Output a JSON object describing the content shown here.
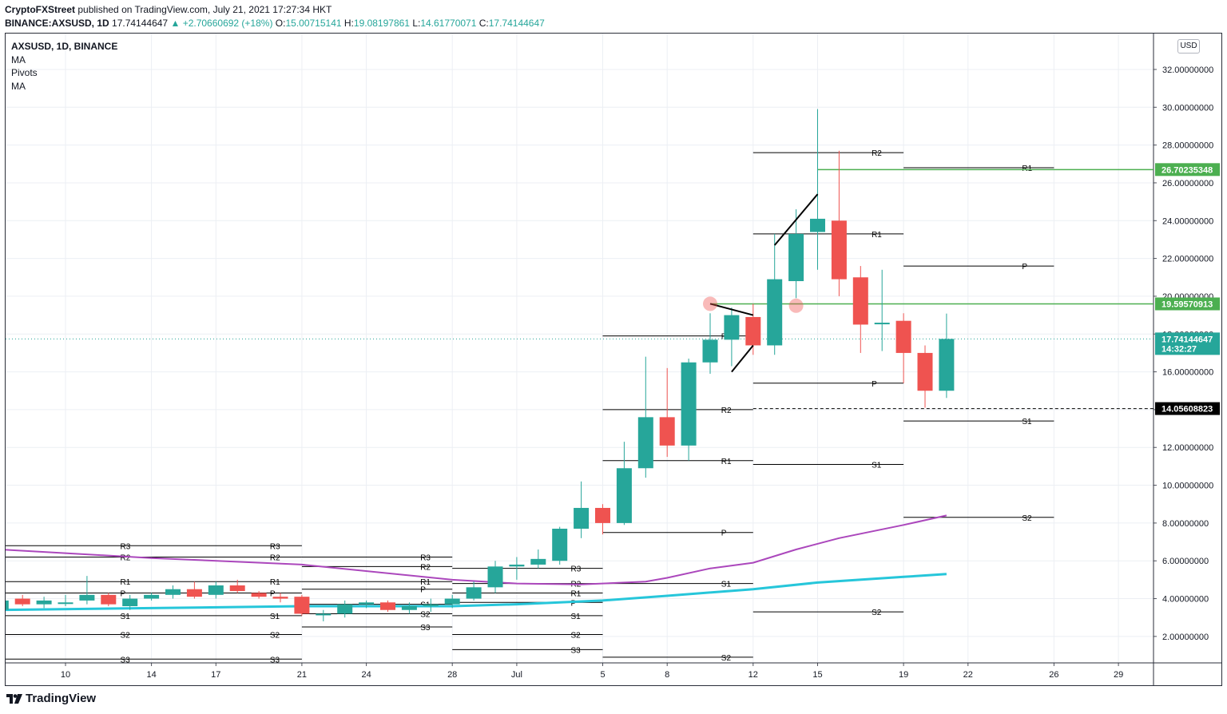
{
  "header": {
    "publisher": "CryptoFXStreet",
    "published_text": "published on TradingView.com, July 21, 2021 17:27:34 HKT",
    "symbol": "BINANCE:AXSUSD, 1D",
    "last": "17.74144647",
    "change": "+2.70660692 (+18%)",
    "o_label": "O:",
    "o": "15.00715141",
    "h_label": "H:",
    "h": "19.08197861",
    "l_label": "L:",
    "l": "14.61770071",
    "c_label": "C:",
    "c": "17.74144647"
  },
  "legend": {
    "title": "AXSUSD, 1D, BINANCE",
    "indicators": [
      "MA",
      "Pivots",
      "MA"
    ]
  },
  "currency": "USD",
  "footer": {
    "brand": "TradingView"
  },
  "colors": {
    "up": "#26a69a",
    "down": "#ef5350",
    "ma_slow": "#ab47bc",
    "ma_fast": "#26c6da",
    "hline": "#4caf50",
    "pivot": "#000000",
    "grid": "#eceff4"
  },
  "chart_data": {
    "type": "candlestick",
    "title": "AXSUSD, 1D, BINANCE",
    "ylim": [
      0.6,
      33.9
    ],
    "y_ticks": [
      "2.00000000",
      "4.00000000",
      "6.00000000",
      "8.00000000",
      "10.00000000",
      "12.00000000",
      "14.00000000",
      "16.00000000",
      "18.00000000",
      "20.00000000",
      "22.00000000",
      "24.00000000",
      "26.00000000",
      "28.00000000",
      "30.00000000",
      "32.00000000"
    ],
    "x_ticks": [
      {
        "label": "10",
        "date": "2021-06-10"
      },
      {
        "label": "14",
        "date": "2021-06-14"
      },
      {
        "label": "17",
        "date": "2021-06-17"
      },
      {
        "label": "21",
        "date": "2021-06-21"
      },
      {
        "label": "24",
        "date": "2021-06-24"
      },
      {
        "label": "28",
        "date": "2021-06-28"
      },
      {
        "label": "Jul",
        "date": "2021-07-01"
      },
      {
        "label": "5",
        "date": "2021-07-05"
      },
      {
        "label": "8",
        "date": "2021-07-08"
      },
      {
        "label": "12",
        "date": "2021-07-12"
      },
      {
        "label": "15",
        "date": "2021-07-15"
      },
      {
        "label": "19",
        "date": "2021-07-19"
      },
      {
        "label": "22",
        "date": "2021-07-22"
      },
      {
        "label": "26",
        "date": "2021-07-26"
      },
      {
        "label": "29",
        "date": "2021-07-29"
      }
    ],
    "candles": [
      {
        "date": "2021-06-07",
        "o": 3.4,
        "h": 3.9,
        "l": 3.2,
        "c": 3.9
      },
      {
        "date": "2021-06-08",
        "o": 4.0,
        "h": 4.2,
        "l": 3.6,
        "c": 3.7
      },
      {
        "date": "2021-06-09",
        "o": 3.7,
        "h": 4.1,
        "l": 3.5,
        "c": 3.9
      },
      {
        "date": "2021-06-10",
        "o": 3.8,
        "h": 4.2,
        "l": 3.6,
        "c": 3.8
      },
      {
        "date": "2021-06-11",
        "o": 3.9,
        "h": 5.2,
        "l": 3.7,
        "c": 4.2
      },
      {
        "date": "2021-06-12",
        "o": 4.2,
        "h": 4.3,
        "l": 3.6,
        "c": 3.7
      },
      {
        "date": "2021-06-13",
        "o": 3.6,
        "h": 4.2,
        "l": 3.4,
        "c": 4.0
      },
      {
        "date": "2021-06-14",
        "o": 4.0,
        "h": 4.3,
        "l": 3.9,
        "c": 4.2
      },
      {
        "date": "2021-06-15",
        "o": 4.2,
        "h": 4.7,
        "l": 4.0,
        "c": 4.5
      },
      {
        "date": "2021-06-16",
        "o": 4.5,
        "h": 4.9,
        "l": 4.0,
        "c": 4.1
      },
      {
        "date": "2021-06-17",
        "o": 4.2,
        "h": 4.9,
        "l": 4.0,
        "c": 4.7
      },
      {
        "date": "2021-06-18",
        "o": 4.7,
        "h": 5.0,
        "l": 4.3,
        "c": 4.4
      },
      {
        "date": "2021-06-19",
        "o": 4.3,
        "h": 4.4,
        "l": 4.0,
        "c": 4.1
      },
      {
        "date": "2021-06-20",
        "o": 4.1,
        "h": 4.3,
        "l": 3.8,
        "c": 4.0
      },
      {
        "date": "2021-06-21",
        "o": 4.1,
        "h": 4.2,
        "l": 3.1,
        "c": 3.2
      },
      {
        "date": "2021-06-22",
        "o": 3.2,
        "h": 3.4,
        "l": 2.8,
        "c": 3.2
      },
      {
        "date": "2021-06-23",
        "o": 3.2,
        "h": 3.9,
        "l": 3.0,
        "c": 3.7
      },
      {
        "date": "2021-06-24",
        "o": 3.7,
        "h": 3.9,
        "l": 3.5,
        "c": 3.8
      },
      {
        "date": "2021-06-25",
        "o": 3.8,
        "h": 3.9,
        "l": 3.3,
        "c": 3.4
      },
      {
        "date": "2021-06-26",
        "o": 3.4,
        "h": 3.8,
        "l": 3.2,
        "c": 3.6
      },
      {
        "date": "2021-06-27",
        "o": 3.6,
        "h": 4.0,
        "l": 3.3,
        "c": 3.7
      },
      {
        "date": "2021-06-28",
        "o": 3.7,
        "h": 4.2,
        "l": 3.5,
        "c": 4.0
      },
      {
        "date": "2021-06-29",
        "o": 4.0,
        "h": 4.9,
        "l": 3.9,
        "c": 4.6
      },
      {
        "date": "2021-06-30",
        "o": 4.6,
        "h": 6.0,
        "l": 4.3,
        "c": 5.7
      },
      {
        "date": "2021-07-01",
        "o": 5.7,
        "h": 6.2,
        "l": 5.0,
        "c": 5.8
      },
      {
        "date": "2021-07-02",
        "o": 5.8,
        "h": 6.6,
        "l": 5.6,
        "c": 6.1
      },
      {
        "date": "2021-07-03",
        "o": 6.0,
        "h": 7.8,
        "l": 5.8,
        "c": 7.7
      },
      {
        "date": "2021-07-04",
        "o": 7.7,
        "h": 10.2,
        "l": 7.2,
        "c": 8.8
      },
      {
        "date": "2021-07-05",
        "o": 8.8,
        "h": 9.0,
        "l": 7.4,
        "c": 8.0
      },
      {
        "date": "2021-07-06",
        "o": 8.0,
        "h": 12.3,
        "l": 7.9,
        "c": 10.9
      },
      {
        "date": "2021-07-07",
        "o": 10.9,
        "h": 16.8,
        "l": 10.4,
        "c": 13.6
      },
      {
        "date": "2021-07-08",
        "o": 13.6,
        "h": 16.2,
        "l": 11.5,
        "c": 12.1
      },
      {
        "date": "2021-07-09",
        "o": 12.1,
        "h": 16.7,
        "l": 11.3,
        "c": 16.5
      },
      {
        "date": "2021-07-10",
        "o": 16.5,
        "h": 19.1,
        "l": 15.9,
        "c": 17.7
      },
      {
        "date": "2021-07-11",
        "o": 17.7,
        "h": 19.4,
        "l": 16.3,
        "c": 19.0
      },
      {
        "date": "2021-07-12",
        "o": 18.9,
        "h": 19.6,
        "l": 16.9,
        "c": 17.4
      },
      {
        "date": "2021-07-13",
        "o": 17.4,
        "h": 23.3,
        "l": 16.9,
        "c": 20.9
      },
      {
        "date": "2021-07-14",
        "o": 20.8,
        "h": 24.6,
        "l": 19.9,
        "c": 23.3
      },
      {
        "date": "2021-07-15",
        "o": 23.4,
        "h": 29.9,
        "l": 21.4,
        "c": 24.1
      },
      {
        "date": "2021-07-16",
        "o": 24.0,
        "h": 27.7,
        "l": 20.0,
        "c": 20.9
      },
      {
        "date": "2021-07-17",
        "o": 21.0,
        "h": 21.6,
        "l": 17.0,
        "c": 18.5
      },
      {
        "date": "2021-07-18",
        "o": 18.6,
        "h": 21.4,
        "l": 17.1,
        "c": 18.6
      },
      {
        "date": "2021-07-19",
        "o": 18.7,
        "h": 19.1,
        "l": 15.4,
        "c": 17.0
      },
      {
        "date": "2021-07-20",
        "o": 17.0,
        "h": 17.4,
        "l": 14.1,
        "c": 15.0
      },
      {
        "date": "2021-07-21",
        "o": 15.0,
        "h": 19.08197861,
        "l": 14.61770071,
        "c": 17.74144647
      }
    ],
    "ma_slow": [
      {
        "date": "2021-06-07",
        "v": 6.6
      },
      {
        "date": "2021-06-14",
        "v": 6.15
      },
      {
        "date": "2021-06-21",
        "v": 5.8
      },
      {
        "date": "2021-06-28",
        "v": 5.0
      },
      {
        "date": "2021-07-01",
        "v": 4.8
      },
      {
        "date": "2021-07-04",
        "v": 4.75
      },
      {
        "date": "2021-07-07",
        "v": 4.9
      },
      {
        "date": "2021-07-08",
        "v": 5.1
      },
      {
        "date": "2021-07-10",
        "v": 5.6
      },
      {
        "date": "2021-07-12",
        "v": 5.9
      },
      {
        "date": "2021-07-14",
        "v": 6.6
      },
      {
        "date": "2021-07-16",
        "v": 7.2
      },
      {
        "date": "2021-07-19",
        "v": 7.9
      },
      {
        "date": "2021-07-21",
        "v": 8.4
      }
    ],
    "ma_fast": [
      {
        "date": "2021-06-07",
        "v": 3.4
      },
      {
        "date": "2021-06-14",
        "v": 3.5
      },
      {
        "date": "2021-06-21",
        "v": 3.6
      },
      {
        "date": "2021-06-28",
        "v": 3.6
      },
      {
        "date": "2021-07-01",
        "v": 3.7
      },
      {
        "date": "2021-07-05",
        "v": 3.9
      },
      {
        "date": "2021-07-08",
        "v": 4.15
      },
      {
        "date": "2021-07-12",
        "v": 4.5
      },
      {
        "date": "2021-07-15",
        "v": 4.85
      },
      {
        "date": "2021-07-19",
        "v": 5.15
      },
      {
        "date": "2021-07-21",
        "v": 5.3
      }
    ],
    "pivot_periods": [
      {
        "start": "2021-06-07",
        "end": "2021-06-14",
        "levels": []
      },
      {
        "start": "2021-06-07",
        "end": "2021-06-14",
        "levels": [
          {
            "label": "R3",
            "value": 6.8
          },
          {
            "label": "R2",
            "value": 6.2
          },
          {
            "label": "R1",
            "value": 4.9
          },
          {
            "label": "P",
            "value": 4.3
          },
          {
            "label": "S1",
            "value": 3.1
          },
          {
            "label": "S2",
            "value": 2.1
          },
          {
            "label": "S3",
            "value": 0.8
          }
        ]
      },
      {
        "start": "2021-06-14",
        "end": "2021-06-21",
        "levels": [
          {
            "label": "R3",
            "value": 6.8
          },
          {
            "label": "R2",
            "value": 6.2
          },
          {
            "label": "R1",
            "value": 4.9
          },
          {
            "label": "P",
            "value": 4.3
          },
          {
            "label": "S1",
            "value": 3.1
          },
          {
            "label": "S2",
            "value": 2.1
          },
          {
            "label": "S3",
            "value": 0.8
          }
        ]
      },
      {
        "start": "2021-06-21",
        "end": "2021-06-28",
        "levels": [
          {
            "label": "R3",
            "value": 6.2
          },
          {
            "label": "R2",
            "value": 5.7
          },
          {
            "label": "R1",
            "value": 4.9
          },
          {
            "label": "P",
            "value": 4.5
          },
          {
            "label": "S1",
            "value": 3.7
          },
          {
            "label": "S2",
            "value": 3.2
          },
          {
            "label": "S3",
            "value": 2.5
          }
        ]
      },
      {
        "start": "2021-06-28",
        "end": "2021-07-05",
        "levels": [
          {
            "label": "R3",
            "value": 5.6
          },
          {
            "label": "R2",
            "value": 4.8
          },
          {
            "label": "R1",
            "value": 4.3
          },
          {
            "label": "P",
            "value": 3.8
          },
          {
            "label": "S1",
            "value": 3.1
          },
          {
            "label": "S2",
            "value": 2.1
          },
          {
            "label": "S3",
            "value": 1.3
          }
        ]
      },
      {
        "start": "2021-07-05",
        "end": "2021-07-12",
        "levels": [
          {
            "label": "R3",
            "value": 17.9
          },
          {
            "label": "R2",
            "value": 14.0
          },
          {
            "label": "R1",
            "value": 11.3
          },
          {
            "label": "P",
            "value": 7.5
          },
          {
            "label": "S1",
            "value": 4.8
          },
          {
            "label": "S2",
            "value": 0.9
          }
        ]
      },
      {
        "start": "2021-07-12",
        "end": "2021-07-19",
        "levels": [
          {
            "label": "R2",
            "value": 27.6
          },
          {
            "label": "R1",
            "value": 23.3
          },
          {
            "label": "P",
            "value": 15.4
          },
          {
            "label": "S1",
            "value": 11.1
          },
          {
            "label": "S2",
            "value": 3.3
          }
        ]
      },
      {
        "start": "2021-07-19",
        "end": "2021-07-26",
        "levels": [
          {
            "label": "R1",
            "value": 26.8
          },
          {
            "label": "P",
            "value": 21.6
          },
          {
            "label": "S1",
            "value": 13.4
          },
          {
            "label": "S2",
            "value": 8.3
          }
        ]
      }
    ],
    "horizontal_lines": [
      {
        "value": 26.70235348,
        "label": "26.70235348",
        "start": "2021-07-15",
        "color": "#4caf50"
      },
      {
        "value": 19.59570913,
        "label": "19.59570913",
        "start": "2021-07-10",
        "color": "#4caf50"
      }
    ],
    "dashed_line": {
      "value": 14.05608823,
      "label": "14.05608823",
      "start": "2021-07-12"
    },
    "last_price": {
      "value": 17.74144647,
      "label": "17.74144647",
      "countdown": "14:32:27"
    },
    "drawings": [
      {
        "x1": "2021-07-10",
        "y1": 19.6,
        "x2": "2021-07-12",
        "y2": 19.0
      },
      {
        "x1": "2021-07-11",
        "y1": 16.0,
        "x2": "2021-07-12",
        "y2": 17.4
      },
      {
        "x1": "2021-07-13",
        "y1": 22.7,
        "x2": "2021-07-15",
        "y2": 25.4
      }
    ],
    "markers": [
      {
        "date": "2021-07-10",
        "value": 19.6
      },
      {
        "date": "2021-07-14",
        "value": 19.5
      }
    ]
  }
}
